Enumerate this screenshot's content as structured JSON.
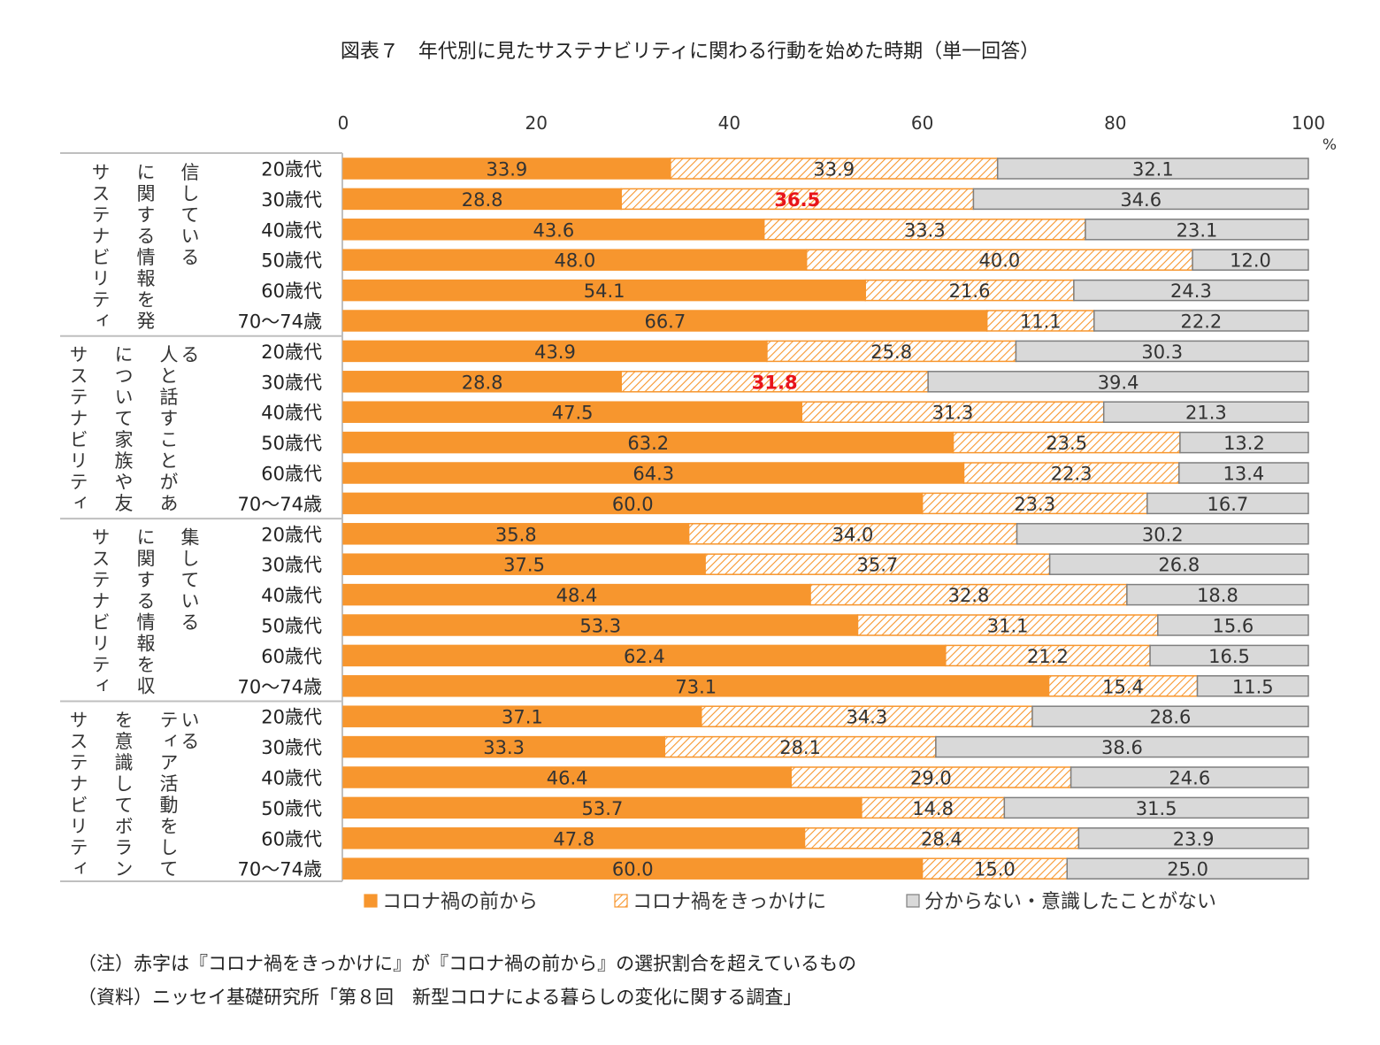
{
  "chart_data": {
    "type": "bar",
    "orientation": "horizontal",
    "stacked": true,
    "percent_stacked": true,
    "title": "図表７　年代別に見たサステナビリティに関わる行動を始めた時期（単一回答）",
    "xlim": [
      0,
      100
    ],
    "x_ticks": [
      0,
      20,
      40,
      60,
      80,
      100
    ],
    "x_tick_labels": [
      "0",
      "20",
      "40",
      "60",
      "80",
      "100"
    ],
    "x_unit": "%",
    "legend_position": "bottom",
    "series_names": [
      "コロナ禍の前から",
      "コロナ禍をきっかけに",
      "分からない・意識したことがない"
    ],
    "series_colors": [
      "#f7962e",
      "#f7962e",
      "#d9d9d9"
    ],
    "age_categories": [
      "20歳代",
      "30歳代",
      "40歳代",
      "50歳代",
      "60歳代",
      "70～74歳"
    ],
    "groups": [
      {
        "label_columns": [
          "サステナビリティ",
          "に関する情報を発",
          "信している"
        ],
        "values": [
          [
            33.9,
            33.9,
            32.1
          ],
          [
            28.8,
            36.5,
            34.6
          ],
          [
            43.6,
            33.3,
            23.1
          ],
          [
            48.0,
            40.0,
            12.0
          ],
          [
            54.1,
            21.6,
            24.3
          ],
          [
            66.7,
            11.1,
            22.2
          ]
        ],
        "labels": [
          [
            "33.9",
            "33.9",
            "32.1"
          ],
          [
            "28.8",
            "36.5",
            "34.6"
          ],
          [
            "43.6",
            "33.3",
            "23.1"
          ],
          [
            "48.0",
            "40.0",
            "12.0"
          ],
          [
            "54.1",
            "21.6",
            "24.3"
          ],
          [
            "66.7",
            "11.1",
            "22.2"
          ]
        ],
        "highlight_rows": [
          1
        ]
      },
      {
        "label_columns": [
          "サステナビリティ",
          "について家族や友",
          "人と話すことがあ",
          "る"
        ],
        "values": [
          [
            43.9,
            25.8,
            30.3
          ],
          [
            28.8,
            31.8,
            39.4
          ],
          [
            47.5,
            31.3,
            21.3
          ],
          [
            63.2,
            23.5,
            13.2
          ],
          [
            64.3,
            22.3,
            13.4
          ],
          [
            60.0,
            23.3,
            16.7
          ]
        ],
        "labels": [
          [
            "43.9",
            "25.8",
            "30.3"
          ],
          [
            "28.8",
            "31.8",
            "39.4"
          ],
          [
            "47.5",
            "31.3",
            "21.3"
          ],
          [
            "63.2",
            "23.5",
            "13.2"
          ],
          [
            "64.3",
            "22.3",
            "13.4"
          ],
          [
            "60.0",
            "23.3",
            "16.7"
          ]
        ],
        "highlight_rows": [
          1
        ]
      },
      {
        "label_columns": [
          "サステナビリティ",
          "に関する情報を収",
          "集している"
        ],
        "values": [
          [
            35.8,
            34.0,
            30.2
          ],
          [
            37.5,
            35.7,
            26.8
          ],
          [
            48.4,
            32.8,
            18.8
          ],
          [
            53.3,
            31.1,
            15.6
          ],
          [
            62.4,
            21.2,
            16.5
          ],
          [
            73.1,
            15.4,
            11.5
          ]
        ],
        "labels": [
          [
            "35.8",
            "34.0",
            "30.2"
          ],
          [
            "37.5",
            "35.7",
            "26.8"
          ],
          [
            "48.4",
            "32.8",
            "18.8"
          ],
          [
            "53.3",
            "31.1",
            "15.6"
          ],
          [
            "62.4",
            "21.2",
            "16.5"
          ],
          [
            "73.1",
            "15.4",
            "11.5"
          ]
        ],
        "highlight_rows": []
      },
      {
        "label_columns": [
          "サステナビリティ",
          "を意識してボラン",
          "ティア活動をして",
          "いる"
        ],
        "values": [
          [
            37.1,
            34.3,
            28.6
          ],
          [
            33.3,
            28.1,
            38.6
          ],
          [
            46.4,
            29.0,
            24.6
          ],
          [
            53.7,
            14.8,
            31.5
          ],
          [
            47.8,
            28.4,
            23.9
          ],
          [
            60.0,
            15.0,
            25.0
          ]
        ],
        "labels": [
          [
            "37.1",
            "34.3",
            "28.6"
          ],
          [
            "33.3",
            "28.1",
            "38.6"
          ],
          [
            "46.4",
            "29.0",
            "24.6"
          ],
          [
            "53.7",
            "14.8",
            "31.5"
          ],
          [
            "47.8",
            "28.4",
            "23.9"
          ],
          [
            "60.0",
            "15.0",
            "25.0"
          ]
        ],
        "highlight_rows": []
      }
    ]
  },
  "notes": {
    "note": "（注）赤字は『コロナ禍をきっかけに』が『コロナ禍の前から』の選択割合を超えているもの",
    "source": "（資料）ニッセイ基礎研究所「第８回　新型コロナによる暮らしの変化に関する調査」"
  }
}
